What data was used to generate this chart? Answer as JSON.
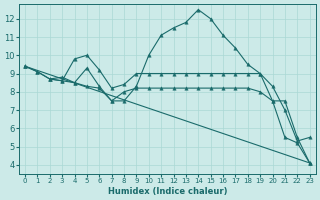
{
  "xlabel": "Humidex (Indice chaleur)",
  "xlim": [
    -0.5,
    23.5
  ],
  "ylim": [
    3.5,
    12.8
  ],
  "xticks": [
    0,
    1,
    2,
    3,
    4,
    5,
    6,
    7,
    8,
    9,
    10,
    11,
    12,
    13,
    14,
    15,
    16,
    17,
    18,
    19,
    20,
    21,
    22,
    23
  ],
  "yticks": [
    4,
    5,
    6,
    7,
    8,
    9,
    10,
    11,
    12
  ],
  "bg_color": "#cceae8",
  "line_color": "#1a6b6b",
  "grid_color": "#aad8d5",
  "lines": [
    {
      "x": [
        0,
        1,
        2,
        3,
        4,
        5,
        6,
        7,
        8,
        9,
        10,
        11,
        12,
        13,
        14,
        15,
        16,
        17,
        18,
        19,
        20,
        21,
        22,
        23
      ],
      "y": [
        9.4,
        9.1,
        8.7,
        8.8,
        8.5,
        9.3,
        8.3,
        7.5,
        7.5,
        8.3,
        10.0,
        11.1,
        11.5,
        11.8,
        12.5,
        12.0,
        11.1,
        10.4,
        9.5,
        9.0,
        8.3,
        7.0,
        5.3,
        5.5
      ]
    },
    {
      "x": [
        0,
        23
      ],
      "y": [
        9.4,
        4.1
      ]
    },
    {
      "x": [
        0,
        1,
        2,
        3,
        4,
        5,
        6,
        7,
        8,
        9,
        10,
        11,
        12,
        13,
        14,
        15,
        16,
        17,
        18,
        19,
        20,
        21,
        22,
        23
      ],
      "y": [
        9.4,
        9.1,
        8.7,
        8.6,
        9.8,
        10.0,
        9.2,
        8.2,
        8.4,
        9.0,
        9.0,
        9.0,
        9.0,
        9.0,
        9.0,
        9.0,
        9.0,
        9.0,
        9.0,
        9.0,
        7.5,
        5.5,
        5.2,
        4.1
      ]
    },
    {
      "x": [
        2,
        3,
        4,
        5,
        6,
        7,
        8,
        9,
        10,
        11,
        12,
        13,
        14,
        15,
        16,
        17,
        18,
        19,
        20,
        21,
        22,
        23
      ],
      "y": [
        8.7,
        8.6,
        8.5,
        8.3,
        8.2,
        7.5,
        8.0,
        8.2,
        8.2,
        8.2,
        8.2,
        8.2,
        8.2,
        8.2,
        8.2,
        8.2,
        8.2,
        8.0,
        7.5,
        7.5,
        5.5,
        4.1
      ]
    }
  ]
}
